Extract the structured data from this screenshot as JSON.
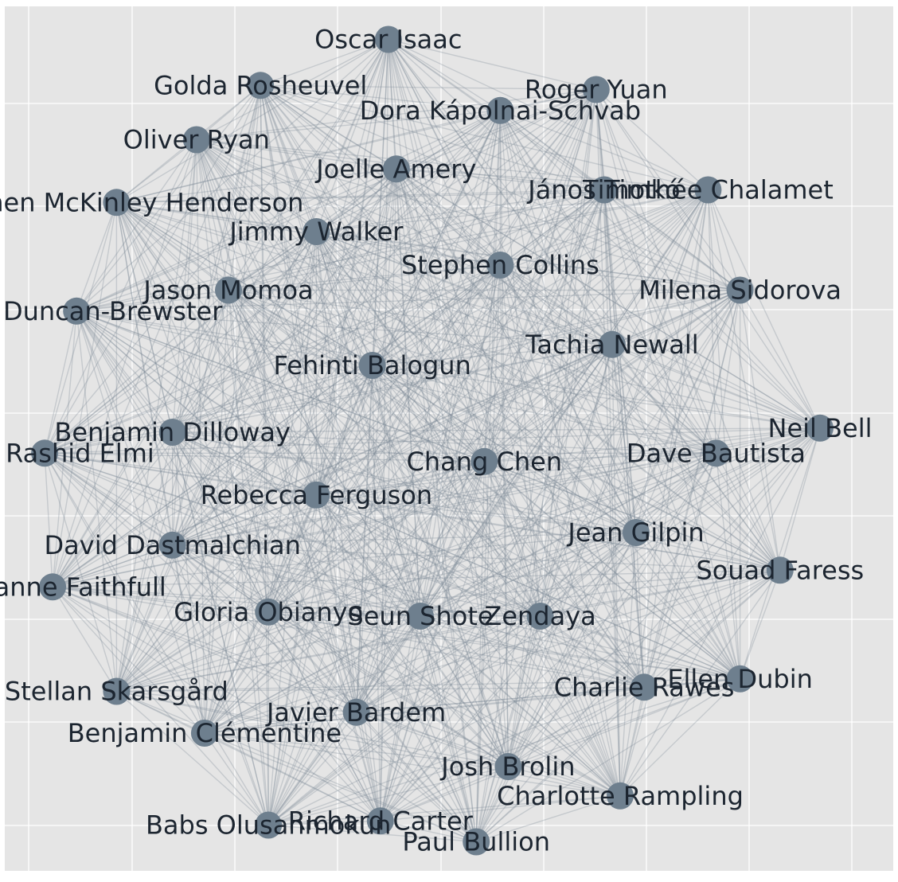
{
  "chart_data": {
    "type": "network",
    "grid": true,
    "colors": {
      "background": "#e5e5e5",
      "grid": "#ffffff",
      "node": "#6e7f8e",
      "edge": "#7b8794",
      "label": "#1c2530"
    },
    "nodes": [
      {
        "label": "Oscar Isaac",
        "x": 0.45,
        "y": 0.95
      },
      {
        "label": "Golda Rosheuvel",
        "x": 0.29,
        "y": 0.895
      },
      {
        "label": "Roger Yuan",
        "x": 0.71,
        "y": 0.89
      },
      {
        "label": "Dora Kápolnai-Schvab",
        "x": 0.59,
        "y": 0.865
      },
      {
        "label": "Oliver Ryan",
        "x": 0.21,
        "y": 0.83
      },
      {
        "label": "Joelle Amery",
        "x": 0.46,
        "y": 0.795
      },
      {
        "label": "János Timkó",
        "x": 0.72,
        "y": 0.77
      },
      {
        "label": "Timothée Chalamet",
        "x": 0.85,
        "y": 0.77
      },
      {
        "label": "Stephen McKinley Henderson",
        "x": 0.11,
        "y": 0.755
      },
      {
        "label": "Jimmy Walker",
        "x": 0.36,
        "y": 0.72
      },
      {
        "label": "Stephen Collins",
        "x": 0.59,
        "y": 0.68
      },
      {
        "label": "Milena Sidorova",
        "x": 0.89,
        "y": 0.65
      },
      {
        "label": "Jason Momoa",
        "x": 0.25,
        "y": 0.65
      },
      {
        "label": "Anya Duncan-Brewster",
        "x": 0.06,
        "y": 0.625
      },
      {
        "label": "Tachia Newall",
        "x": 0.73,
        "y": 0.585
      },
      {
        "label": "Fehinti Balogun",
        "x": 0.43,
        "y": 0.56
      },
      {
        "label": "Neil Bell",
        "x": 0.99,
        "y": 0.485
      },
      {
        "label": "Benjamin Dilloway",
        "x": 0.18,
        "y": 0.48
      },
      {
        "label": "Babs Rashid Elmi",
        "x": 0.02,
        "y": 0.455
      },
      {
        "label": "Dave Bautista",
        "x": 0.86,
        "y": 0.455
      },
      {
        "label": "Chang Chen",
        "x": 0.57,
        "y": 0.445
      },
      {
        "label": "Rebecca Ferguson",
        "x": 0.36,
        "y": 0.405
      },
      {
        "label": "Jean Gilpin",
        "x": 0.76,
        "y": 0.36
      },
      {
        "label": "David Dastmalchian",
        "x": 0.18,
        "y": 0.345
      },
      {
        "label": "Souad Faress",
        "x": 0.94,
        "y": 0.315
      },
      {
        "label": "Marianne Faithfull",
        "x": 0.03,
        "y": 0.295
      },
      {
        "label": "Gloria Obianyo",
        "x": 0.3,
        "y": 0.265
      },
      {
        "label": "Seun Shote",
        "x": 0.49,
        "y": 0.26
      },
      {
        "label": "Zendaya",
        "x": 0.64,
        "y": 0.26
      },
      {
        "label": "Ellen Dubin",
        "x": 0.89,
        "y": 0.185
      },
      {
        "label": "Charlie Rawes",
        "x": 0.77,
        "y": 0.175
      },
      {
        "label": "Stellan Skarsgård",
        "x": 0.11,
        "y": 0.17
      },
      {
        "label": "Javier Bardem",
        "x": 0.41,
        "y": 0.145
      },
      {
        "label": "Benjamin Clémentine",
        "x": 0.22,
        "y": 0.12
      },
      {
        "label": "Josh Brolin",
        "x": 0.6,
        "y": 0.08
      },
      {
        "label": "Charlotte Rampling",
        "x": 0.74,
        "y": 0.045
      },
      {
        "label": "Babs Olusanmokun",
        "x": 0.3,
        "y": 0.01
      },
      {
        "label": "Richard Carter",
        "x": 0.44,
        "y": 0.015
      },
      {
        "label": "Paul Bullion",
        "x": 0.56,
        "y": -0.01
      }
    ],
    "edges": "complete"
  }
}
